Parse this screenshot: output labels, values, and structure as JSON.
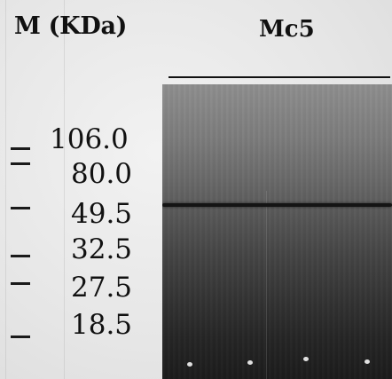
{
  "figure": {
    "marker_heading": "M (KDa)",
    "lane_heading": "Mc5",
    "markers": [
      {
        "label": "106.0"
      },
      {
        "label": "80.0"
      },
      {
        "label": "49.5"
      },
      {
        "label": "32.5"
      },
      {
        "label": "27.5"
      },
      {
        "label": "18.5"
      }
    ]
  }
}
